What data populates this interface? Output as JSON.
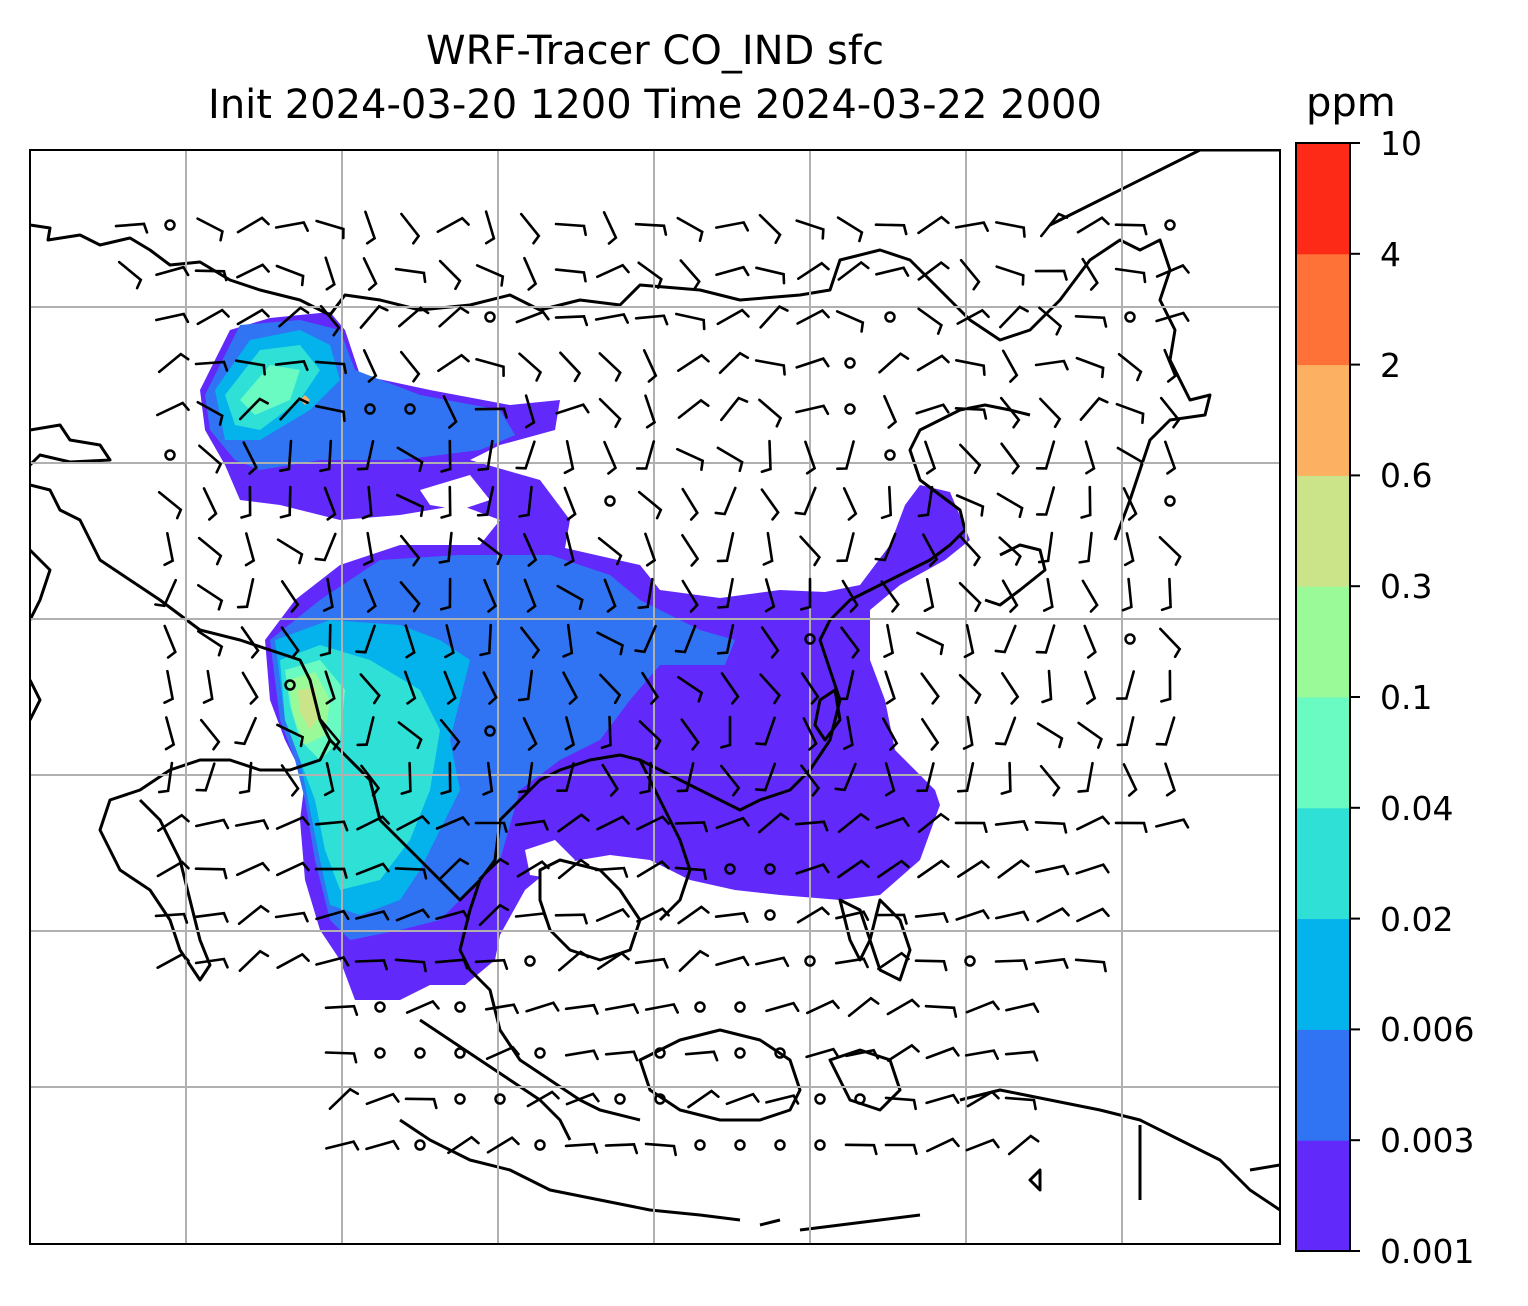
{
  "title": {
    "line1": "WRF-Tracer CO_IND sfc",
    "line2": "Init 2024-03-20 1200 Time 2024-03-22 2000"
  },
  "colorbar": {
    "unit": "ppm",
    "levels": [
      "0.001",
      "0.003",
      "0.006",
      "0.02",
      "0.04",
      "0.1",
      "0.3",
      "0.6",
      "2",
      "4",
      "10"
    ],
    "colors": [
      "#6229fb",
      "#3174f3",
      "#04b2ec",
      "#2ee0d6",
      "#6afbc3",
      "#9bfa98",
      "#cbe389",
      "#fbb161",
      "#fe7238",
      "#fd2a17"
    ]
  },
  "map": {
    "coastline_color": "#000000",
    "gridline_color": "#b0b0b0",
    "wind_barb_color": "#000000"
  }
}
